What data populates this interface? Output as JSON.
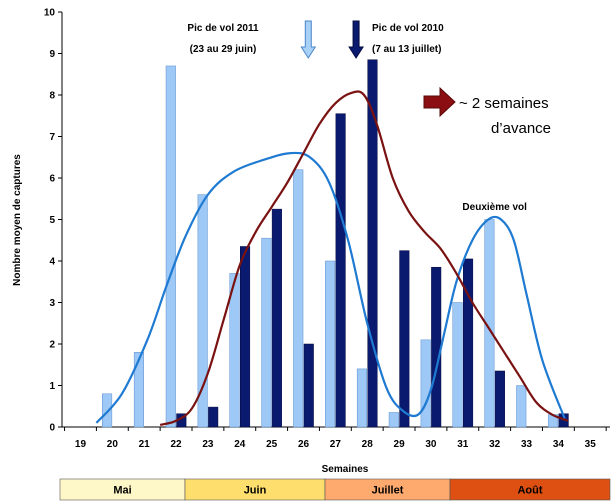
{
  "chart_data": {
    "type": "bar",
    "xlabel": "Semaines",
    "ylabel": "Nombre moyen de captures",
    "ylim": [
      0,
      10
    ],
    "yticks": [
      "0",
      "1",
      "2",
      "3",
      "4",
      "5",
      "6",
      "7",
      "8",
      "9",
      "10"
    ],
    "categories": [
      "19",
      "20",
      "21",
      "22",
      "23",
      "24",
      "25",
      "26",
      "27",
      "28",
      "29",
      "30",
      "31",
      "32",
      "33",
      "34",
      "35"
    ],
    "grid": false,
    "series": [
      {
        "color": "#9ec8f5",
        "values": [
          null,
          0.8,
          1.8,
          8.7,
          5.6,
          3.7,
          4.55,
          6.2,
          4.0,
          1.4,
          0.35,
          2.1,
          3.0,
          5.0,
          1.0,
          0.3,
          null
        ]
      },
      {
        "color": "#0a1a6e",
        "values": [
          null,
          null,
          null,
          0.32,
          0.48,
          4.35,
          5.25,
          2.0,
          7.55,
          8.85,
          4.25,
          3.85,
          4.05,
          1.35,
          null,
          0.32,
          null
        ]
      }
    ],
    "curves": [
      {
        "color": "#1f7ad2",
        "x": [
          19.5,
          20.3,
          21.1,
          21.7,
          22.3,
          23.0,
          23.8,
          24.8,
          25.6,
          26.2,
          26.8,
          27.4,
          28.0,
          28.6,
          29.1,
          29.6,
          30.0,
          30.4,
          30.8,
          31.3,
          31.8,
          32.2,
          32.6,
          33.0,
          33.5,
          34.2
        ],
        "y": [
          0.1,
          0.8,
          2.1,
          3.4,
          4.6,
          5.6,
          6.15,
          6.45,
          6.6,
          6.5,
          5.9,
          4.5,
          2.5,
          0.95,
          0.4,
          0.3,
          0.9,
          2.2,
          3.5,
          4.5,
          5.0,
          5.0,
          4.5,
          3.2,
          1.6,
          0.2
        ]
      },
      {
        "color": "#7a1212",
        "x": [
          21.5,
          22.0,
          22.5,
          23.0,
          23.5,
          24.0,
          24.5,
          25.0,
          25.5,
          26.0,
          26.5,
          27.0,
          27.5,
          27.9,
          28.3,
          28.8,
          29.3,
          29.8,
          30.3,
          30.8,
          31.3,
          31.8,
          32.3,
          32.8,
          33.3,
          33.8,
          34.3
        ],
        "y": [
          0.05,
          0.15,
          0.45,
          1.3,
          2.6,
          3.9,
          4.7,
          5.3,
          5.9,
          6.6,
          7.3,
          7.8,
          8.05,
          8.0,
          7.3,
          6.0,
          5.2,
          4.7,
          4.3,
          3.7,
          3.0,
          2.4,
          1.8,
          1.2,
          0.6,
          0.3,
          0.15
        ]
      }
    ],
    "annotations": [
      {
        "text": "Pic de vol 2011",
        "sub": "(23 au 29 juin)",
        "arrow_x": 26.15,
        "style": "light"
      },
      {
        "text": "Pic de vol 2010",
        "sub": "(7 au 13 juillet)",
        "arrow_x": 27.65,
        "style": "dark"
      },
      {
        "text": "Deuxième vol",
        "x": 32.0
      },
      {
        "text": "~ 2 semaines",
        "text2": "d’avance"
      }
    ],
    "months": [
      {
        "label": "Mai",
        "color": "#fef7c8"
      },
      {
        "label": "Juin",
        "color": "#fedf6e"
      },
      {
        "label": "Juillet",
        "color": "#fea96e"
      },
      {
        "label": "Août",
        "color": "#dd5012"
      }
    ],
    "colors": {
      "curve_arrow": "#8b0f12"
    }
  }
}
